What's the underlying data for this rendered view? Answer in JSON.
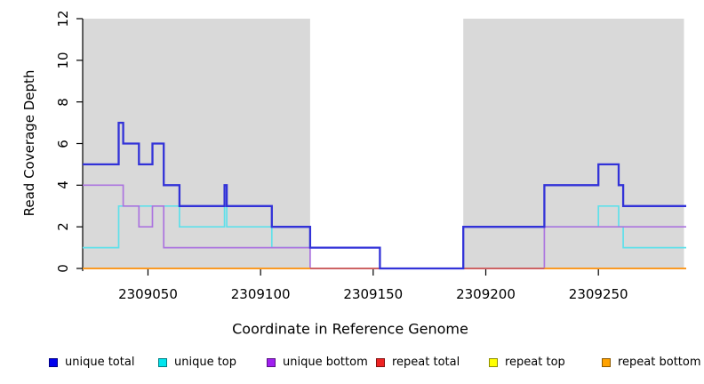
{
  "chart_data": {
    "type": "line",
    "subtype": "step-coverage",
    "title": "",
    "xlabel": "Coordinate in Reference Genome",
    "ylabel": "Read Coverage Depth",
    "x_range": [
      2309021,
      2309289
    ],
    "y_range": [
      0,
      12
    ],
    "x_ticks": [
      2309050,
      2309100,
      2309150,
      2309200,
      2309250
    ],
    "y_ticks": [
      0,
      2,
      4,
      6,
      8,
      10,
      12
    ],
    "grid": false,
    "legend_position": "bottom",
    "shaded_color": "#D9D9D9",
    "shaded_regions": [
      [
        2309021,
        2309122
      ],
      [
        2309190,
        2309288
      ]
    ],
    "series": [
      {
        "name": "unique top",
        "color": "#5FE0EA",
        "segments": [
          {
            "points": [
              [
                2309021,
                1
              ],
              [
                2309037,
                3
              ],
              [
                2309064,
                2
              ],
              [
                2309084,
                3
              ],
              [
                2309085,
                2
              ],
              [
                2309105,
                1
              ],
              [
                2309153,
                0
              ],
              [
                2309190,
                2
              ],
              [
                2309250,
                3
              ],
              [
                2309259,
                2
              ],
              [
                2309261,
                1
              ]
            ],
            "end": 2309289
          }
        ]
      },
      {
        "name": "unique bottom",
        "color": "#AC74DF",
        "segments": [
          {
            "points": [
              [
                2309021,
                4
              ],
              [
                2309039,
                3
              ],
              [
                2309046,
                2
              ],
              [
                2309052,
                3
              ],
              [
                2309057,
                1
              ],
              [
                2309122,
                0
              ],
              [
                2309226,
                2
              ]
            ],
            "end": 2309289
          }
        ]
      },
      {
        "name": "repeat top",
        "color": "#FFFF00",
        "segments": [
          {
            "points": [
              [
                2309021,
                0
              ]
            ],
            "end": 2309289
          }
        ]
      },
      {
        "name": "repeat total",
        "color": "#C8506B",
        "segments": [
          {
            "points": [
              [
                2309021,
                0
              ]
            ],
            "end": 2309289
          }
        ]
      },
      {
        "name": "repeat bottom",
        "color": "#FF9E1B",
        "segments": [
          {
            "points": [
              [
                2309021,
                0
              ]
            ],
            "end": 2309122
          },
          {
            "points": [
              [
                2309226,
                0
              ]
            ],
            "end": 2309289
          }
        ]
      },
      {
        "name": "unique total",
        "color": "#3232D8",
        "segments": [
          {
            "points": [
              [
                2309021,
                5
              ],
              [
                2309037,
                7
              ],
              [
                2309039,
                6
              ],
              [
                2309046,
                5
              ],
              [
                2309052,
                6
              ],
              [
                2309057,
                4
              ],
              [
                2309064,
                3
              ],
              [
                2309084,
                4
              ],
              [
                2309085,
                3
              ],
              [
                2309105,
                2
              ],
              [
                2309122,
                1
              ],
              [
                2309153,
                0
              ],
              [
                2309190,
                2
              ],
              [
                2309226,
                4
              ],
              [
                2309250,
                5
              ],
              [
                2309259,
                4
              ],
              [
                2309261,
                3
              ]
            ],
            "end": 2309289
          }
        ]
      }
    ],
    "legend": [
      {
        "label": "unique total",
        "color": "#0000EE"
      },
      {
        "label": "unique top",
        "color": "#00E5EE"
      },
      {
        "label": "unique bottom",
        "color": "#A020F0"
      },
      {
        "label": "repeat total",
        "color": "#EE2222"
      },
      {
        "label": "repeat top",
        "color": "#FFFF00"
      },
      {
        "label": "repeat bottom",
        "color": "#FFA200"
      }
    ],
    "axis_color": "#000000"
  }
}
